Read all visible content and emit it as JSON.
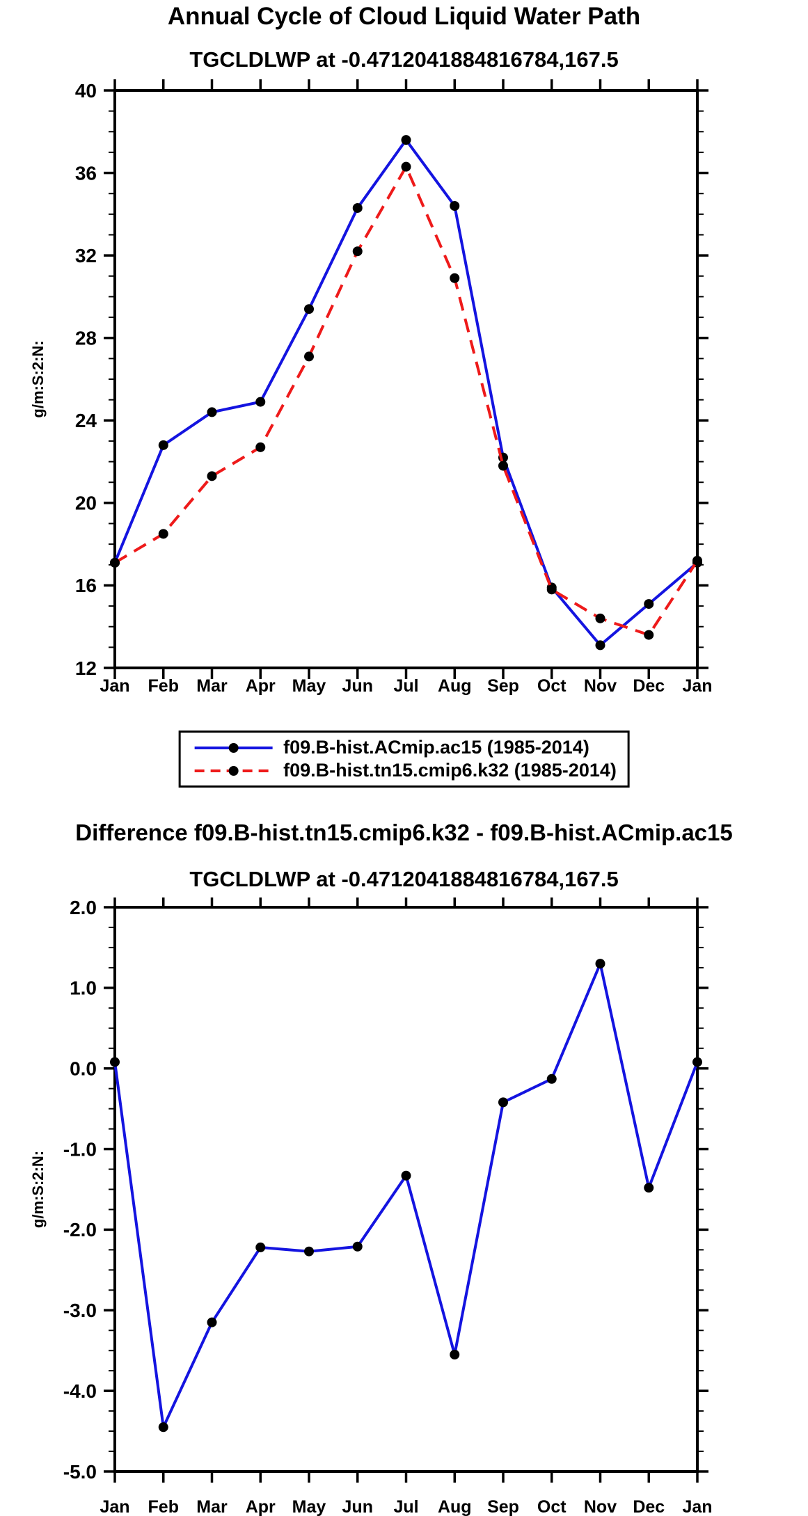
{
  "chart_data": [
    {
      "type": "line",
      "title": "Annual Cycle of Cloud Liquid Water Path",
      "subtitle": "TGCLDLWP at -0.4712041884816784,167.5",
      "ylabel": "g/m:S:2:N:",
      "categories": [
        "Jan",
        "Feb",
        "Mar",
        "Apr",
        "May",
        "Jun",
        "Jul",
        "Aug",
        "Sep",
        "Oct",
        "Nov",
        "Dec",
        "Jan"
      ],
      "ylim": [
        12,
        40
      ],
      "ytick_major": 4,
      "ytick_minor": 1,
      "ytick_format": "int",
      "grid": false,
      "legend_position": "below",
      "series": [
        {
          "name": "f09.B-hist.ACmip.ac15 (1985-2014)",
          "color": "#1414e0",
          "style": "solid",
          "marker": "circle",
          "values": [
            17.1,
            22.8,
            24.4,
            24.9,
            29.4,
            34.3,
            37.6,
            34.4,
            22.2,
            15.9,
            13.1,
            15.1,
            17.1
          ]
        },
        {
          "name": "f09.B-hist.tn15.cmip6.k32 (1985-2014)",
          "color": "#ee1a1a",
          "style": "dashed",
          "marker": "circle",
          "values": [
            17.1,
            18.5,
            21.3,
            22.7,
            27.1,
            32.2,
            36.3,
            30.9,
            21.8,
            15.8,
            14.4,
            13.6,
            17.2
          ]
        }
      ]
    },
    {
      "type": "line",
      "title": "Difference f09.B-hist.tn15.cmip6.k32 - f09.B-hist.ACmip.ac15",
      "subtitle": "TGCLDLWP at -0.4712041884816784,167.5",
      "ylabel": "g/m:S:2:N:",
      "categories": [
        "Jan",
        "Feb",
        "Mar",
        "Apr",
        "May",
        "Jun",
        "Jul",
        "Aug",
        "Sep",
        "Oct",
        "Nov",
        "Dec",
        "Jan"
      ],
      "ylim": [
        -5.0,
        2.0
      ],
      "ytick_major": 1.0,
      "ytick_minor": 0.25,
      "ytick_format": "fixed1",
      "grid": false,
      "legend_position": "none",
      "series": [
        {
          "color": "#1414e0",
          "style": "solid",
          "marker": "circle",
          "values": [
            0.08,
            -4.45,
            -3.15,
            -2.22,
            -2.27,
            -2.21,
            -1.33,
            -3.55,
            -0.42,
            -0.13,
            1.3,
            -1.48,
            0.08
          ]
        }
      ]
    }
  ]
}
